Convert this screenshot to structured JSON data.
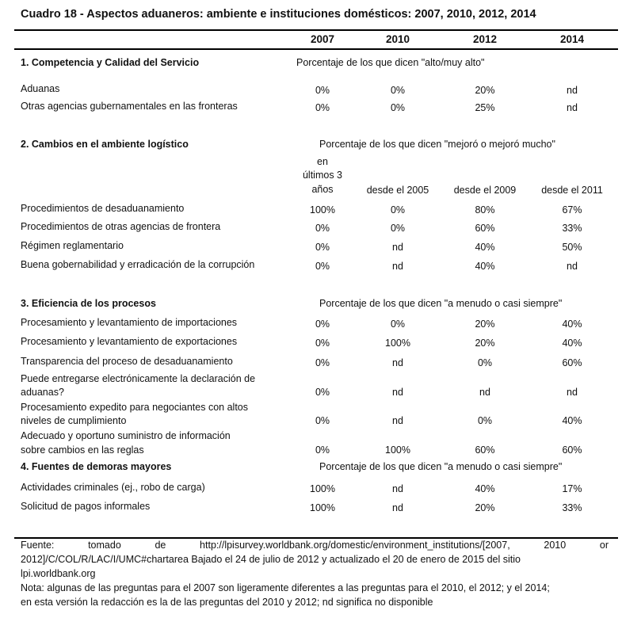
{
  "title": "Cuadro 18 - Aspectos aduaneros: ambiente e instituciones domésticos: 2007, 2010, 2012, 2014",
  "years": [
    "2007",
    "2010",
    "2012",
    "2014"
  ],
  "sections": [
    {
      "title": "1. Competencia y Calidad del Servicio",
      "subtitle": "Porcentaje de los que dicen \"alto/muy alto\"",
      "rows": [
        {
          "label": "Aduanas",
          "values": [
            "0%",
            "0%",
            "20%",
            "nd"
          ]
        },
        {
          "label": "Otras agencias gubernamentales en las fronteras",
          "values": [
            "0%",
            "0%",
            "25%",
            "nd"
          ]
        }
      ]
    },
    {
      "title": "2. Cambios en el ambiente logístico",
      "subtitle": "Porcentaje de los que dicen \"mejoró o mejoró mucho\"",
      "periods": [
        "en",
        "últimos 3",
        "años",
        "desde el 2005",
        "desde el 2009",
        "desde el 2011"
      ],
      "rows": [
        {
          "label": "Procedimientos de desaduanamiento",
          "values": [
            "100%",
            "0%",
            "80%",
            "67%"
          ]
        },
        {
          "label": "Procedimientos de otras agencias de frontera",
          "values": [
            "0%",
            "0%",
            "60%",
            "33%"
          ]
        },
        {
          "label": "Régimen reglamentario",
          "values": [
            "0%",
            "nd",
            "40%",
            "50%"
          ]
        },
        {
          "label": "Buena gobernabilidad y erradicación de la corrupción",
          "values": [
            "0%",
            "nd",
            "40%",
            "nd"
          ]
        }
      ]
    },
    {
      "title": "3. Eficiencia de los procesos",
      "subtitle": "Porcentaje de los que dicen \"a menudo o casi siempre\"",
      "rows": [
        {
          "label": "Procesamiento y levantamiento de importaciones",
          "values": [
            "0%",
            "0%",
            "20%",
            "40%"
          ]
        },
        {
          "label": "Procesamiento y levantamiento de exportaciones",
          "values": [
            "0%",
            "100%",
            "20%",
            "40%"
          ]
        },
        {
          "label": "Transparencia del proceso de desaduanamiento",
          "values": [
            "0%",
            "nd",
            "0%",
            "60%"
          ]
        },
        {
          "label": "Puede entregarse electrónicamente la declaración de",
          "label2": "aduanas?",
          "values": [
            "0%",
            "nd",
            "nd",
            "nd"
          ]
        },
        {
          "label": "Procesamiento expedito para negociantes con altos",
          "label2": "niveles de cumplimiento",
          "values": [
            "0%",
            "nd",
            "0%",
            "40%"
          ]
        },
        {
          "label": "Adecuado y oportuno suministro de información",
          "label2": "sobre cambios en las reglas",
          "values": [
            "0%",
            "100%",
            "60%",
            "60%"
          ]
        }
      ]
    },
    {
      "title": "4. Fuentes de demoras mayores",
      "subtitle": "Porcentaje de los que dicen \"a menudo o casi siempre\"",
      "rows": [
        {
          "label": "Actividades criminales (ej., robo de carga)",
          "values": [
            "100%",
            "nd",
            "40%",
            "17%"
          ]
        },
        {
          "label": "Solicitud de pagos informales",
          "values": [
            "100%",
            "nd",
            "20%",
            "33%"
          ]
        }
      ]
    }
  ],
  "footer": {
    "source_prefix": "Fuente:      tomado      de",
    "link_line1": "http://lpisurvey.worldbank.org/domestic/environment_institutions/[2007,      2010      or",
    "link_line2": "2012]/C/COL/R/LAC/I/UMC#chartarea",
    "source_rest": " Bajado el   24 de julio de 2012 y actualizado el 20 de enero de 2015 del sitio",
    "source_line3": "lpi.worldbank.org",
    "note1": "Nota: algunas de las preguntas para el 2007 son ligeramente diferentes a las preguntas para el 2010, el 2012; y el 2014;",
    "note2": "en esta versión la redacción es la de las preguntas del 2010 y 2012; nd significa no disponible"
  }
}
